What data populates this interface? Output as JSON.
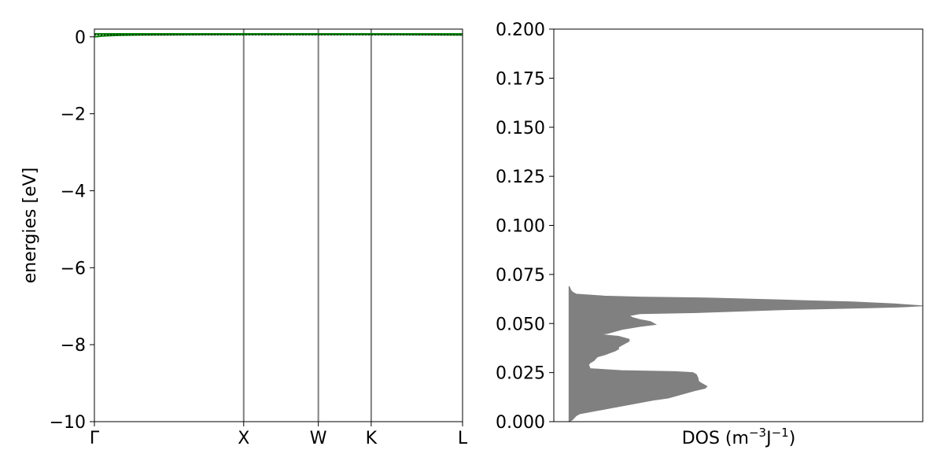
{
  "chart_data": [
    {
      "type": "line",
      "panel": "band-structure",
      "title": "",
      "xlabel": "",
      "ylabel": "energies [eV]",
      "ylim": [
        -10,
        0.2
      ],
      "y_ticks": [
        0,
        -2,
        -4,
        -6,
        -8,
        -10
      ],
      "y_tick_labels": [
        "0",
        "−2",
        "−4",
        "−6",
        "−8",
        "−10"
      ],
      "x_tick_labels": [
        "Γ",
        "X",
        "W",
        "K",
        "L"
      ],
      "x_tick_positions": [
        0,
        1,
        1.5,
        1.854,
        2.466
      ],
      "high_symmetry_lines": [
        "X",
        "W",
        "K"
      ],
      "reference_line": 0.05,
      "band_color": "#008000",
      "series": [
        {
          "x": [
            0,
            0.05,
            0.15,
            0.3,
            0.6,
            1.0,
            1.5,
            1.854,
            2.2,
            2.466
          ],
          "y": [
            0.0,
            0.02,
            0.04,
            0.05,
            0.055,
            0.06,
            0.06,
            0.06,
            0.055,
            0.05
          ]
        },
        {
          "x": [
            0,
            0.05,
            0.15,
            0.3,
            0.6,
            1.0,
            1.5,
            1.854,
            2.2,
            2.466
          ],
          "y": [
            0.07,
            0.072,
            0.074,
            0.075,
            0.075,
            0.074,
            0.074,
            0.073,
            0.072,
            0.07
          ]
        },
        {
          "x": [
            0,
            0.3,
            0.6,
            1.0,
            1.5,
            1.854,
            2.2,
            2.466
          ],
          "y": [
            0.075,
            0.076,
            0.076,
            0.076,
            0.075,
            0.075,
            0.075,
            0.075
          ]
        }
      ]
    },
    {
      "type": "area",
      "panel": "density-of-states",
      "title": "",
      "xlabel": "DOS (m⁻³J⁻¹)",
      "xlabel_base": "DOS (m",
      "xlabel_exp1": "−3",
      "xlabel_mid": "J",
      "xlabel_exp2": "−1",
      "xlabel_end": ")",
      "ylabel": "",
      "ylim": [
        0,
        0.2
      ],
      "xlim": [
        -0.043,
        1.0
      ],
      "y_ticks": [
        0,
        0.025,
        0.05,
        0.075,
        0.1,
        0.125,
        0.15,
        0.175,
        0.2
      ],
      "y_tick_labels": [
        "0.000",
        "0.025",
        "0.050",
        "0.075",
        "0.100",
        "0.125",
        "0.150",
        "0.175",
        "0.200"
      ],
      "fill_color": "#808080",
      "points": [
        [
          0.0,
          0.0
        ],
        [
          0.01,
          0.001
        ],
        [
          0.02,
          0.003
        ],
        [
          0.03,
          0.004
        ],
        [
          0.06,
          0.005
        ],
        [
          0.12,
          0.007
        ],
        [
          0.18,
          0.009
        ],
        [
          0.24,
          0.011
        ],
        [
          0.28,
          0.012
        ],
        [
          0.3,
          0.013
        ],
        [
          0.32,
          0.014
        ],
        [
          0.34,
          0.015
        ],
        [
          0.36,
          0.016
        ],
        [
          0.385,
          0.017
        ],
        [
          0.39,
          0.018
        ],
        [
          0.38,
          0.019
        ],
        [
          0.37,
          0.02
        ],
        [
          0.365,
          0.021
        ],
        [
          0.365,
          0.022
        ],
        [
          0.36,
          0.024
        ],
        [
          0.35,
          0.025
        ],
        [
          0.3,
          0.0255
        ],
        [
          0.15,
          0.026
        ],
        [
          0.06,
          0.027
        ],
        [
          0.055,
          0.029
        ],
        [
          0.06,
          0.03
        ],
        [
          0.07,
          0.031
        ],
        [
          0.08,
          0.033
        ],
        [
          0.1,
          0.034
        ],
        [
          0.13,
          0.036
        ],
        [
          0.14,
          0.037
        ],
        [
          0.14,
          0.038
        ],
        [
          0.16,
          0.04
        ],
        [
          0.17,
          0.041
        ],
        [
          0.17,
          0.042
        ],
        [
          0.14,
          0.0435
        ],
        [
          0.11,
          0.044
        ],
        [
          0.09,
          0.0445
        ],
        [
          0.11,
          0.045
        ],
        [
          0.15,
          0.047
        ],
        [
          0.2,
          0.0485
        ],
        [
          0.245,
          0.0495
        ],
        [
          0.23,
          0.051
        ],
        [
          0.2,
          0.052
        ],
        [
          0.18,
          0.053
        ],
        [
          0.17,
          0.054
        ],
        [
          0.2,
          0.055
        ],
        [
          0.35,
          0.0555
        ],
        [
          0.6,
          0.057
        ],
        [
          0.85,
          0.058
        ],
        [
          0.95,
          0.0585
        ],
        [
          1.0,
          0.059
        ],
        [
          0.92,
          0.06
        ],
        [
          0.8,
          0.061
        ],
        [
          0.6,
          0.062
        ],
        [
          0.4,
          0.063
        ],
        [
          0.2,
          0.0635
        ],
        [
          0.1,
          0.064
        ],
        [
          0.02,
          0.065
        ],
        [
          0.01,
          0.066
        ],
        [
          0.005,
          0.067
        ],
        [
          0.003,
          0.068
        ],
        [
          0.0,
          0.069
        ]
      ]
    }
  ]
}
